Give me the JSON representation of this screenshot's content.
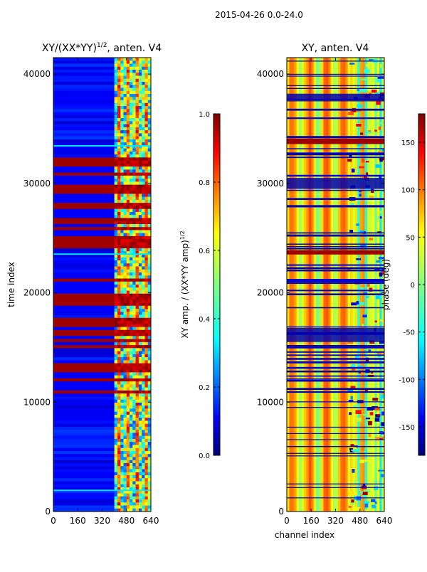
{
  "figure_title": "2015-04-26 0.0-24.0",
  "chart_data": [
    {
      "type": "heatmap",
      "title_prefix": "XY/(XX*YY)",
      "title_sup": "1/2",
      "title_suffix": ", anten. V4",
      "ylabel": "time index",
      "xlabel": "",
      "xlim": [
        0,
        640
      ],
      "ylim": [
        0,
        41500
      ],
      "xticks": [
        0,
        160,
        320,
        480,
        640
      ],
      "yticks": [
        0,
        10000,
        20000,
        30000,
        40000
      ],
      "colorbar": {
        "label_main": "XY amp. / (XX*YY amp)",
        "label_sup": "1/2",
        "range": [
          0.0,
          1.0
        ],
        "ticks": [
          0.0,
          0.2,
          0.4,
          0.6,
          0.8,
          1.0
        ]
      },
      "colormap": "jet",
      "description_rows": {
        "high_band_ranges": [
          [
            10500,
            13800
          ],
          [
            15000,
            17800
          ],
          [
            18500,
            21500
          ],
          [
            24000,
            32500
          ]
        ],
        "bright_channel_range": [
          400,
          640
        ]
      }
    },
    {
      "type": "heatmap",
      "title": "XY, anten. V4",
      "ylabel": "",
      "xlabel": "channel index",
      "xlim": [
        0,
        640
      ],
      "ylim": [
        0,
        41500
      ],
      "xticks": [
        0,
        160,
        320,
        480,
        640
      ],
      "yticks": [
        0,
        10000,
        20000,
        30000,
        40000
      ],
      "colorbar": {
        "label": "phase (deg)",
        "range": [
          -180,
          180
        ],
        "ticks": [
          -150,
          -100,
          -50,
          0,
          50,
          100,
          150
        ]
      },
      "colormap": "jet"
    }
  ],
  "colors": {
    "jet_dark_blue": "#00007f",
    "jet_blue": "#0000ff",
    "jet_cyan": "#00ffff",
    "jet_yellow": "#ffff00",
    "jet_red": "#ff0000",
    "jet_dark_red": "#7f0000"
  }
}
